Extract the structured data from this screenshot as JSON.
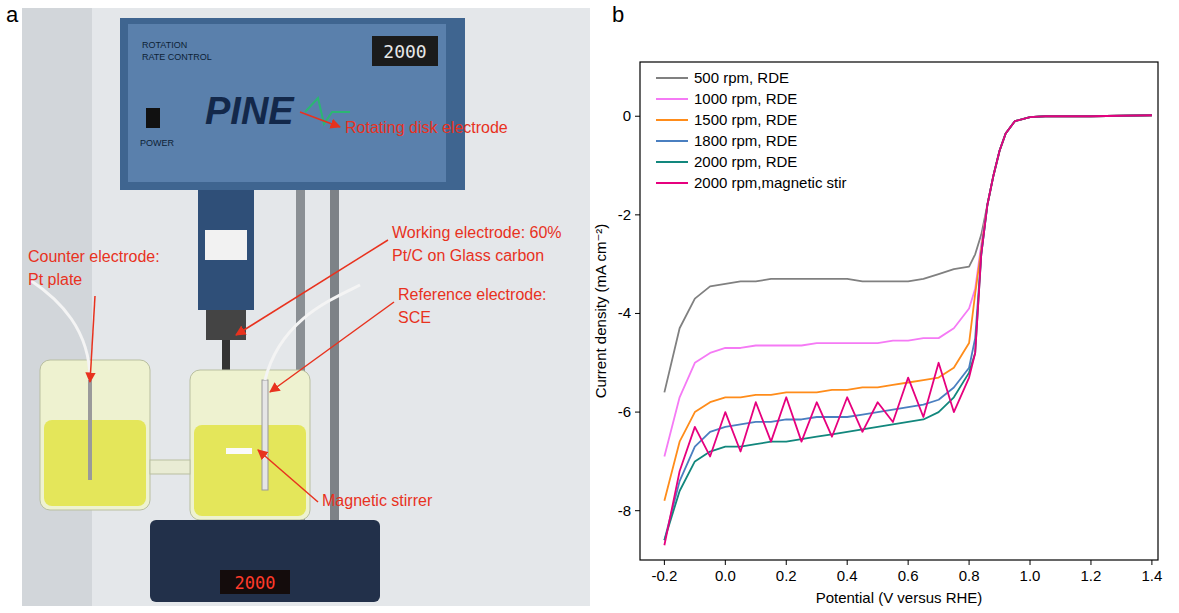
{
  "panel_a": {
    "letter": "a",
    "device_texts": {
      "brand": "PINE",
      "control": [
        "ROTATION",
        "RATE CONTROL"
      ],
      "power": "POWER",
      "rotator_display": "2000",
      "stirrer_display": "2000"
    },
    "labels": [
      {
        "lines": [
          "Rotating disk electrode"
        ]
      },
      {
        "lines": [
          "Counter electrode:",
          "Pt plate"
        ]
      },
      {
        "lines": [
          "Working electrode: 60%",
          "Pt/C on Glass carbon"
        ]
      },
      {
        "lines": [
          "Reference electrode:",
          "SCE"
        ]
      },
      {
        "lines": [
          "Magnetic stirrer"
        ]
      }
    ]
  },
  "chart_data": {
    "type": "line",
    "panel_label": "b",
    "xlabel": "Potential (V versus RHE)",
    "ylabel": "Current density (mA cm⁻²)",
    "x": [
      -0.2,
      -0.15,
      -0.1,
      -0.05,
      0,
      0.05,
      0.1,
      0.15,
      0.2,
      0.25,
      0.3,
      0.35,
      0.4,
      0.45,
      0.5,
      0.55,
      0.6,
      0.65,
      0.7,
      0.75,
      0.8,
      0.82,
      0.84,
      0.86,
      0.88,
      0.9,
      0.92,
      0.95,
      1.0,
      1.05,
      1.1,
      1.2,
      1.3,
      1.4
    ],
    "series": [
      {
        "name": "500 rpm, RDE",
        "color": "#808080",
        "values": [
          -5.6,
          -4.3,
          -3.7,
          -3.45,
          -3.4,
          -3.35,
          -3.35,
          -3.3,
          -3.3,
          -3.3,
          -3.3,
          -3.3,
          -3.3,
          -3.35,
          -3.35,
          -3.35,
          -3.35,
          -3.3,
          -3.2,
          -3.1,
          -3.05,
          -2.8,
          -2.4,
          -1.8,
          -1.2,
          -0.7,
          -0.35,
          -0.1,
          -0.02,
          0,
          0,
          0,
          0.01,
          0.02
        ]
      },
      {
        "name": "1000 rpm, RDE",
        "color": "#f57af5",
        "values": [
          -6.9,
          -5.7,
          -5.0,
          -4.8,
          -4.7,
          -4.7,
          -4.65,
          -4.65,
          -4.65,
          -4.65,
          -4.6,
          -4.6,
          -4.6,
          -4.6,
          -4.6,
          -4.55,
          -4.55,
          -4.5,
          -4.5,
          -4.3,
          -3.9,
          -3.5,
          -2.6,
          -1.8,
          -1.2,
          -0.7,
          -0.35,
          -0.1,
          -0.02,
          0,
          0,
          0,
          0.01,
          0.02
        ]
      },
      {
        "name": "1500 rpm, RDE",
        "color": "#ff8c1a",
        "values": [
          -7.8,
          -6.6,
          -6.0,
          -5.8,
          -5.7,
          -5.7,
          -5.65,
          -5.65,
          -5.6,
          -5.6,
          -5.6,
          -5.55,
          -5.55,
          -5.5,
          -5.5,
          -5.45,
          -5.4,
          -5.35,
          -5.3,
          -5.1,
          -4.6,
          -3.6,
          -2.7,
          -1.8,
          -1.2,
          -0.7,
          -0.35,
          -0.1,
          -0.02,
          0,
          0,
          0,
          0.01,
          0.02
        ]
      },
      {
        "name": "1800 rpm, RDE",
        "color": "#4a7fc0",
        "values": [
          -8.6,
          -7.4,
          -6.7,
          -6.4,
          -6.3,
          -6.25,
          -6.2,
          -6.2,
          -6.15,
          -6.15,
          -6.1,
          -6.1,
          -6.1,
          -6.05,
          -6.0,
          -5.95,
          -5.9,
          -5.85,
          -5.75,
          -5.5,
          -5.1,
          -4.5,
          -2.8,
          -1.8,
          -1.2,
          -0.7,
          -0.35,
          -0.1,
          -0.02,
          0,
          0,
          0,
          0.01,
          0.02
        ]
      },
      {
        "name": "2000 rpm, RDE",
        "color": "#12877d",
        "values": [
          -8.6,
          -7.6,
          -7.0,
          -6.8,
          -6.7,
          -6.7,
          -6.65,
          -6.6,
          -6.6,
          -6.55,
          -6.5,
          -6.45,
          -6.4,
          -6.35,
          -6.3,
          -6.25,
          -6.2,
          -6.15,
          -6.0,
          -5.7,
          -5.2,
          -4.8,
          -2.8,
          -1.8,
          -1.2,
          -0.7,
          -0.35,
          -0.1,
          -0.02,
          0,
          0,
          0,
          0.01,
          0.02
        ]
      },
      {
        "name": "2000 rpm,magnetic stir",
        "color": "#e6007e",
        "values": [
          -8.7,
          -7.2,
          -6.3,
          -6.9,
          -6.0,
          -6.8,
          -5.8,
          -6.6,
          -5.7,
          -6.6,
          -5.8,
          -6.5,
          -5.7,
          -6.4,
          -5.8,
          -6.2,
          -5.3,
          -6.1,
          -5.0,
          -6.0,
          -5.3,
          -4.8,
          -2.8,
          -1.8,
          -1.2,
          -0.7,
          -0.35,
          -0.1,
          -0.02,
          0,
          0,
          0,
          0.01,
          0.02
        ]
      }
    ],
    "xlim": [
      -0.28,
      1.42
    ],
    "ylim": [
      -9,
      1.1
    ],
    "xticks": [
      -0.2,
      {
        "value": 0,
        "label": "0.0"
      },
      0.2,
      0.4,
      0.6,
      0.8,
      {
        "value": 1,
        "label": "1.0"
      },
      1.2,
      1.4
    ],
    "yticks": [
      -8,
      -6,
      -4,
      -2,
      0
    ],
    "grid": false,
    "legend": "upper left"
  }
}
